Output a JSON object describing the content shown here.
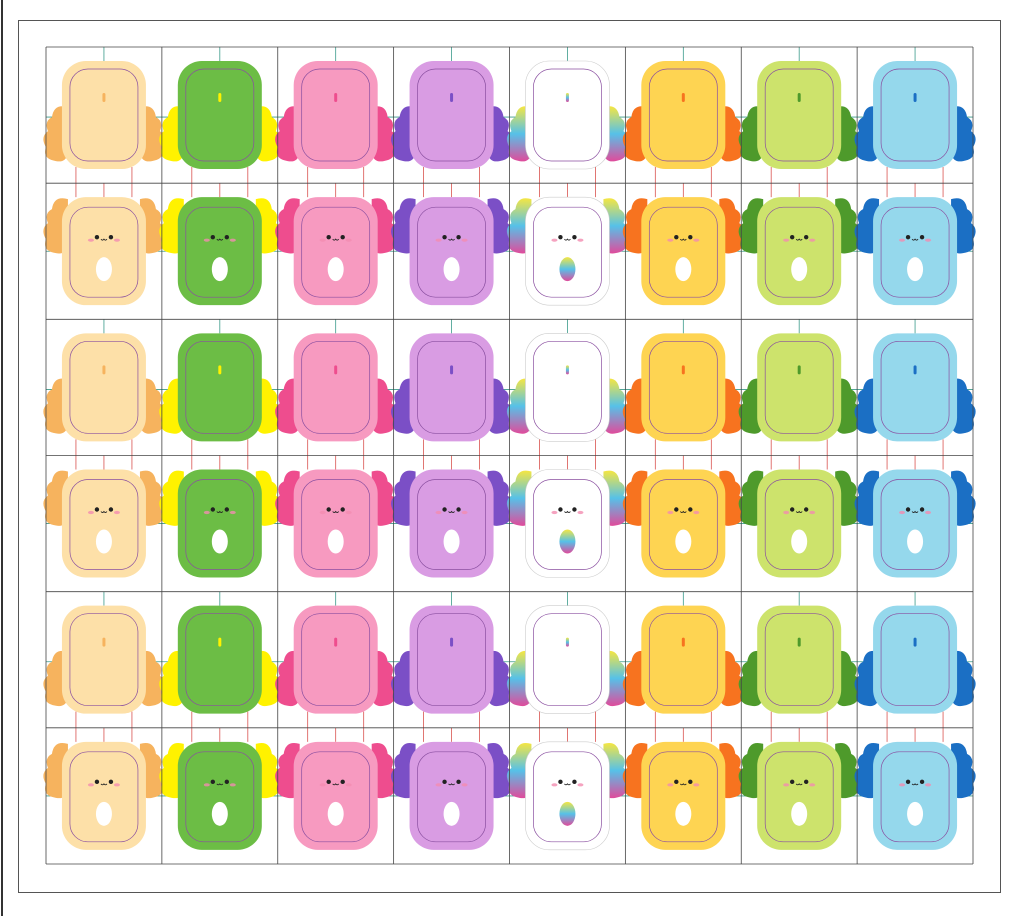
{
  "sheet": {
    "columns": [
      {
        "body": "#fde0a8",
        "gills": "#f6b35e"
      },
      {
        "body": "#6cbd45",
        "gills": "#fff200"
      },
      {
        "body": "#f79ac0",
        "gills": "#ee4d8e"
      },
      {
        "body": "#d99ce3",
        "gills": "#7b4fc6"
      },
      {
        "body": "#ffffff",
        "gills": [
          "#f5e642",
          "#56c1e8",
          "#e04b9b"
        ]
      },
      {
        "body": "#fed452",
        "gills": "#f7731f"
      },
      {
        "body": "#cde36c",
        "gills": "#4e9a2b"
      },
      {
        "body": "#95d8ec",
        "gills": "#1b6fc4"
      }
    ]
  }
}
